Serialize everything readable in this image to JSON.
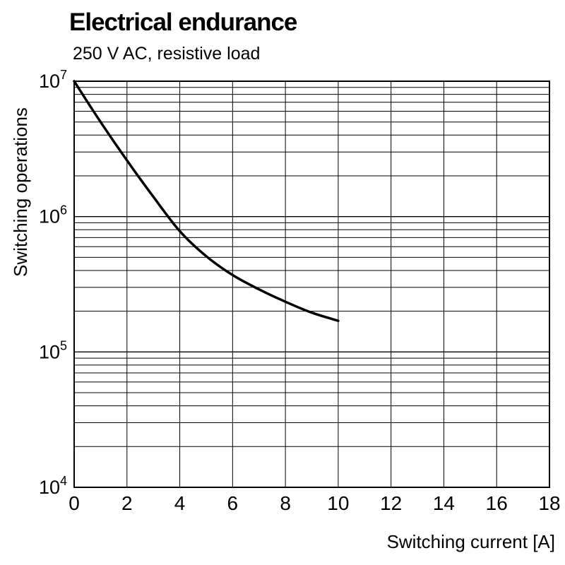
{
  "chart": {
    "title": "Electrical endurance",
    "subtitle": "250 V AC, resistive load",
    "xlabel": "Switching current [A]",
    "ylabel": "Switching operations"
  },
  "chart_data": {
    "type": "line",
    "title": "Electrical endurance",
    "subtitle": "250 V AC, resistive load",
    "xlabel": "Switching current [A]",
    "ylabel": "Switching operations",
    "x_range": [
      0,
      18
    ],
    "x_ticks": [
      0,
      2,
      4,
      6,
      8,
      10,
      12,
      14,
      16,
      18
    ],
    "y_scale": "log",
    "y_range": [
      10000,
      10000000
    ],
    "y_tick_exponents": [
      4,
      5,
      6,
      7
    ],
    "y_tick_labels": [
      "10^4",
      "10^5",
      "10^6",
      "10^7"
    ],
    "grid": true,
    "legend": "none",
    "line_color": "#000000",
    "grid_color": "#000000",
    "series": [
      {
        "name": "electrical-endurance-250VAC-resistive",
        "x": [
          0,
          1,
          2,
          3,
          4,
          5,
          6,
          7,
          8,
          9,
          10
        ],
        "y": [
          10000000,
          5000000,
          2600000,
          1400000,
          780000,
          510000,
          370000,
          290000,
          235000,
          195000,
          170000
        ]
      }
    ]
  }
}
